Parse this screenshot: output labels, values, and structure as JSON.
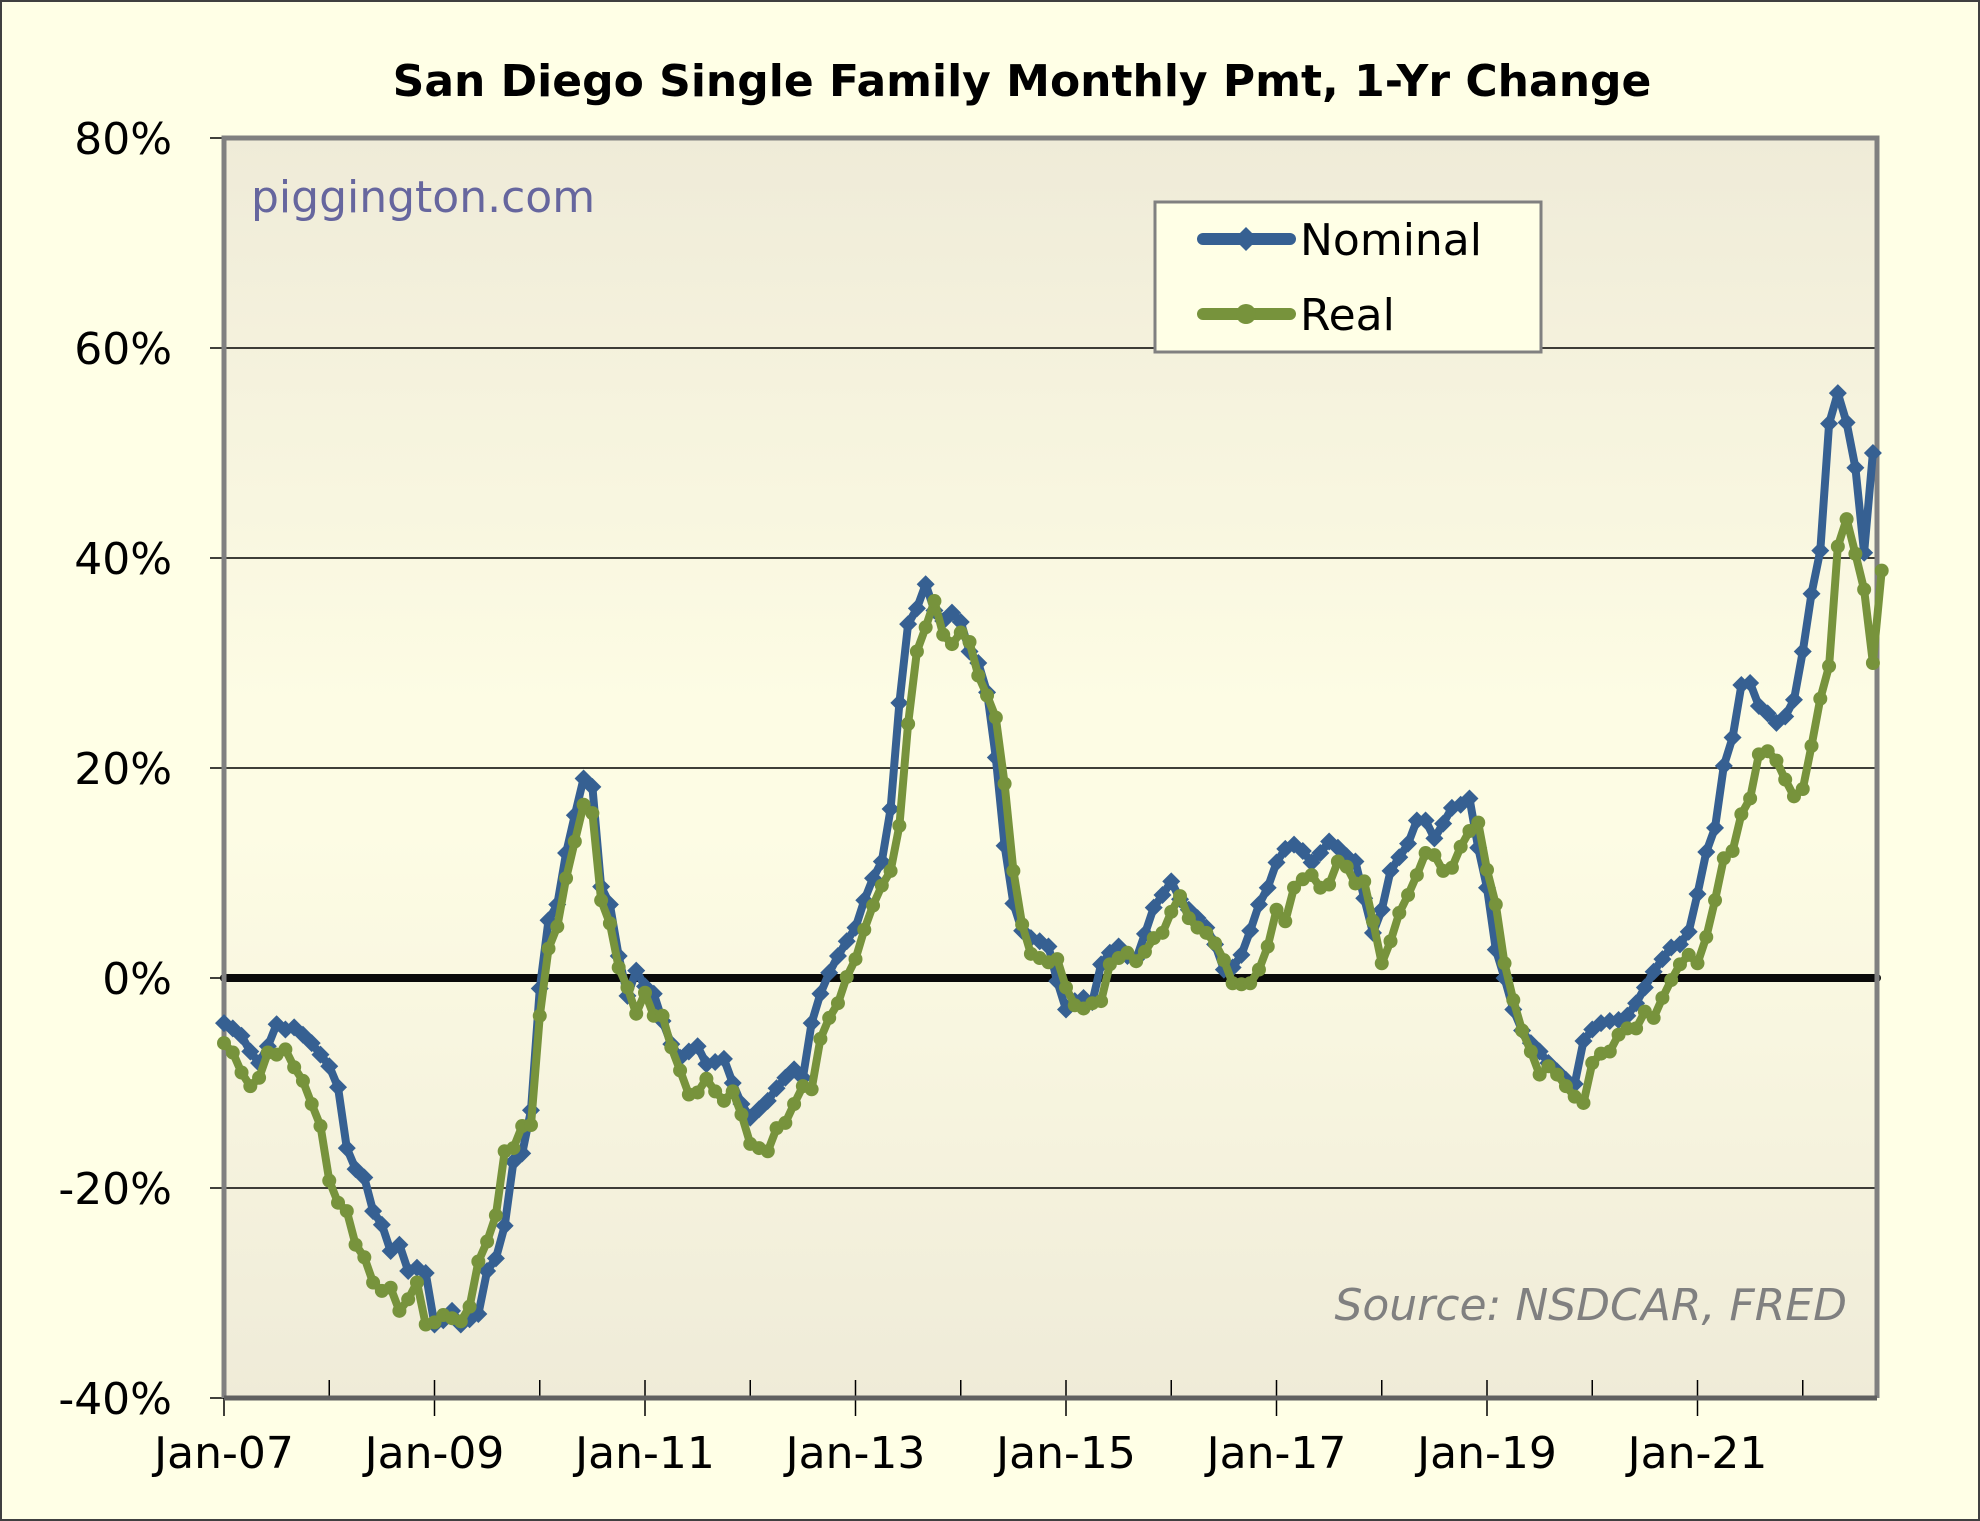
{
  "chart_data": {
    "type": "line",
    "title": "San Diego Single Family Monthly Pmt, 1-Yr Change",
    "xlabel": "",
    "ylabel": "",
    "x_start": "Jan-07",
    "x_end": "Sep-22",
    "x_frequency": "monthly",
    "xtick_labels": [
      "Jan-07",
      "Jan-09",
      "Jan-11",
      "Jan-13",
      "Jan-15",
      "Jan-17",
      "Jan-19",
      "Jan-21"
    ],
    "ytick_labels": [
      "80%",
      "60%",
      "40%",
      "20%",
      "0%",
      "-20%",
      "-40%"
    ],
    "ylim": [
      -40,
      80
    ],
    "yticks": [
      80,
      60,
      40,
      20,
      0,
      -20,
      -40
    ],
    "grid": true,
    "legend_position": "top-right",
    "annotations": {
      "watermark": "piggington.com",
      "source": "Source: NSDCAR, FRED"
    },
    "series": [
      {
        "name": "Nominal",
        "color": "#366092",
        "marker": "diamond",
        "values": [
          -4.3,
          -4.8,
          -5.5,
          -7.0,
          -8.1,
          -6.5,
          -4.4,
          -4.9,
          -4.7,
          -5.4,
          -6.2,
          -7.3,
          -8.4,
          -10.4,
          -16.2,
          -18.2,
          -19.0,
          -22.2,
          -23.5,
          -26.0,
          -25.4,
          -27.9,
          -27.6,
          -28.1,
          -33.0,
          -32.6,
          -31.7,
          -33.0,
          -32.5,
          -32.0,
          -27.9,
          -26.7,
          -23.6,
          -17.5,
          -16.7,
          -12.6,
          -1.0,
          5.5,
          7.0,
          11.9,
          15.5,
          19.0,
          18.2,
          8.7,
          7.0,
          2.1,
          -1.7,
          0.7,
          -0.8,
          -1.5,
          -4.1,
          -6.3,
          -7.6,
          -7.0,
          -6.5,
          -8.2,
          -8.0,
          -7.7,
          -10.0,
          -12.0,
          -13.3,
          -12.5,
          -11.7,
          -10.5,
          -9.5,
          -8.7,
          -9.5,
          -4.3,
          -1.5,
          0.5,
          2.1,
          3.5,
          4.8,
          7.4,
          9.5,
          11.1,
          16.1,
          26.2,
          33.7,
          35.2,
          37.5,
          35.0,
          34.0,
          34.8,
          33.9,
          31.1,
          30.0,
          27.2,
          21.0,
          12.6,
          7.1,
          4.5,
          3.8,
          3.5,
          3.0,
          -0.3,
          -3.0,
          -2.2,
          -1.9,
          -2.3,
          1.3,
          2.4,
          3.0,
          2.1,
          1.8,
          4.2,
          6.7,
          7.9,
          9.2,
          7.5,
          6.5,
          5.7,
          4.8,
          3.2,
          0.8,
          1.0,
          2.2,
          4.5,
          7.0,
          8.6,
          11.0,
          12.3,
          12.7,
          12.1,
          11.0,
          11.9,
          13.0,
          12.4,
          11.6,
          11.1,
          7.6,
          4.3,
          6.5,
          10.2,
          11.5,
          12.8,
          15.0,
          15.0,
          13.3,
          14.7,
          16.2,
          16.5,
          17.1,
          12.4,
          8.6,
          2.7,
          0.0,
          -3.0,
          -5.0,
          -6.2,
          -7.0,
          -8.1,
          -8.9,
          -9.7,
          -10.1,
          -6.0,
          -4.9,
          -4.3,
          -4.1,
          -4.0,
          -3.6,
          -2.4,
          -0.9,
          0.6,
          1.8,
          2.9,
          3.2,
          4.4,
          8.0,
          12.0,
          14.3,
          20.2,
          22.9,
          27.9,
          28.1,
          25.9,
          25.2,
          24.3,
          24.9,
          26.5,
          31.1,
          36.6,
          40.7,
          52.8,
          55.7,
          52.9,
          48.6,
          40.5,
          50.0
        ]
      },
      {
        "name": "Real",
        "color": "#77933C",
        "marker": "circle",
        "values": [
          -6.2,
          -7.1,
          -9.0,
          -10.3,
          -9.5,
          -7.1,
          -7.3,
          -6.8,
          -8.5,
          -9.8,
          -12.0,
          -14.1,
          -19.3,
          -21.4,
          -22.2,
          -25.4,
          -26.6,
          -29.0,
          -29.8,
          -29.5,
          -31.7,
          -30.6,
          -29.0,
          -33.0,
          -32.8,
          -32.1,
          -32.4,
          -32.7,
          -31.3,
          -27.0,
          -25.1,
          -22.6,
          -16.5,
          -16.2,
          -14.1,
          -14.0,
          -3.6,
          2.8,
          4.9,
          9.5,
          13.0,
          16.5,
          15.7,
          7.4,
          5.2,
          1.0,
          -0.9,
          -3.4,
          -1.4,
          -3.6,
          -3.6,
          -6.6,
          -8.8,
          -11.1,
          -10.9,
          -9.6,
          -10.8,
          -11.7,
          -10.8,
          -13.0,
          -15.8,
          -16.2,
          -16.5,
          -14.3,
          -13.8,
          -12.0,
          -10.3,
          -10.6,
          -5.8,
          -3.8,
          -2.4,
          0.1,
          1.8,
          4.6,
          6.9,
          8.8,
          10.2,
          14.5,
          24.2,
          31.1,
          33.4,
          35.9,
          32.7,
          31.8,
          32.9,
          32.0,
          28.8,
          26.9,
          24.8,
          18.5,
          10.2,
          5.1,
          2.3,
          1.9,
          1.5,
          1.8,
          -0.9,
          -2.6,
          -2.9,
          -2.4,
          -2.2,
          1.3,
          1.9,
          2.4,
          1.6,
          2.5,
          3.8,
          4.3,
          6.3,
          7.8,
          5.7,
          4.8,
          4.3,
          3.3,
          1.7,
          -0.5,
          -0.6,
          -0.5,
          0.8,
          3.0,
          6.5,
          5.4,
          8.6,
          9.4,
          9.8,
          8.6,
          8.9,
          11.1,
          10.6,
          9.0,
          9.2,
          5.4,
          1.4,
          3.5,
          6.2,
          7.9,
          9.8,
          11.9,
          11.7,
          10.2,
          10.5,
          12.5,
          14.0,
          14.8,
          10.3,
          7.0,
          1.4,
          -2.1,
          -5.0,
          -7.0,
          -9.2,
          -8.4,
          -9.2,
          -10.3,
          -11.3,
          -11.9,
          -8.1,
          -7.2,
          -7.0,
          -5.4,
          -4.8,
          -4.8,
          -3.2,
          -3.8,
          -1.9,
          -0.2,
          1.3,
          2.2,
          1.4,
          3.9,
          7.4,
          11.4,
          12.1,
          15.6,
          17.1,
          21.3,
          21.6,
          20.7,
          18.9,
          17.3,
          18.0,
          22.1,
          26.6,
          29.7,
          41.1,
          43.7,
          40.4,
          37.0,
          30.0,
          38.8
        ]
      }
    ]
  },
  "legend": {
    "items": [
      {
        "label": "Nominal",
        "color": "#366092"
      },
      {
        "label": "Real",
        "color": "#77933C"
      }
    ]
  }
}
